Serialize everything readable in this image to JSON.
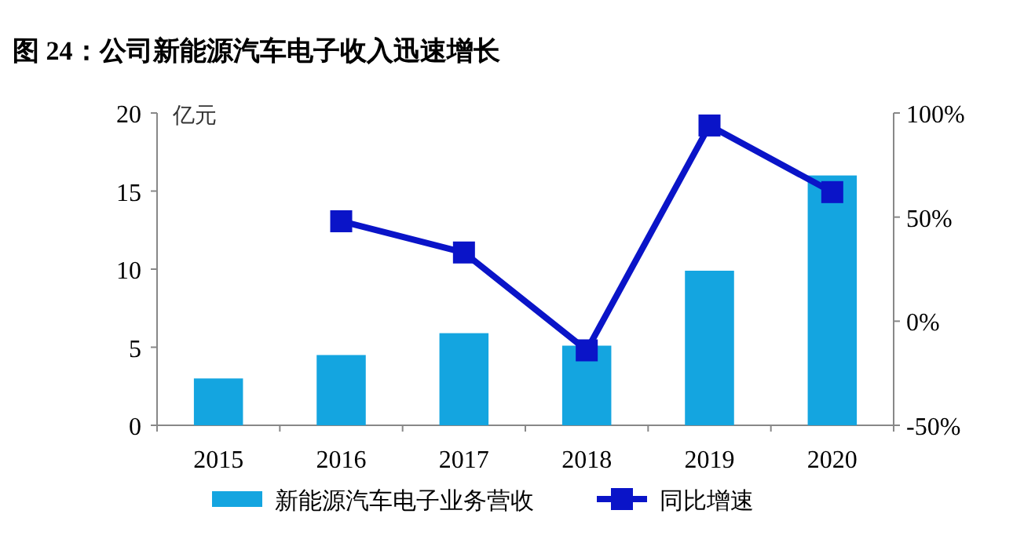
{
  "chart_data": {
    "type": "bar",
    "title": "图 24：公司新能源汽车电子收入迅速增长",
    "ylabel": "亿元",
    "categories": [
      "2015",
      "2016",
      "2017",
      "2018",
      "2019",
      "2020"
    ],
    "series": [
      {
        "name": "新能源汽车电子业务营收",
        "color": "#14a5e0",
        "values": [
          3.0,
          4.5,
          5.9,
          5.1,
          9.9,
          16.0
        ]
      },
      {
        "name": "同比增速",
        "type": "line",
        "axis": "y2",
        "color": "#0a14c8",
        "marker": "square",
        "values": [
          null,
          48,
          33,
          -14,
          94,
          62
        ]
      }
    ],
    "ylim": [
      0,
      20
    ],
    "yticks": [
      0,
      5,
      10,
      15,
      20
    ],
    "y2lim": [
      -50,
      100
    ],
    "y2ticks": [
      {
        "value": -50,
        "label": "-50%"
      },
      {
        "value": 0,
        "label": "0%"
      },
      {
        "value": 50,
        "label": "50%"
      },
      {
        "value": 100,
        "label": "100%"
      }
    ],
    "legend": "bottom"
  }
}
